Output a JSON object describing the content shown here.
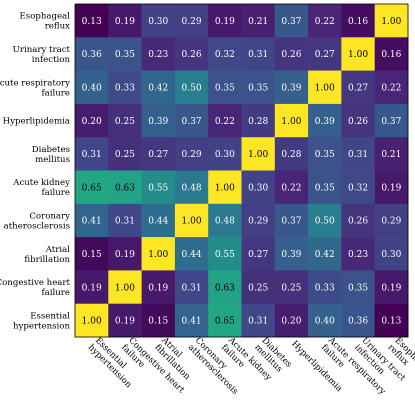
{
  "chart_data": {
    "type": "heatmap",
    "row_labels": [
      [
        "Esophageal",
        "reflux"
      ],
      [
        "Urinary tract",
        "infection"
      ],
      [
        "Acute respiratory",
        "failure"
      ],
      [
        "Hyperlipidemia"
      ],
      [
        "Diabetes",
        "mellitus"
      ],
      [
        "Acute kidney",
        "failure"
      ],
      [
        "Coronary",
        "atherosclerosis"
      ],
      [
        "Atrial",
        "fibrillation"
      ],
      [
        "Congestive heart",
        "failure"
      ],
      [
        "Essential",
        "hypertension"
      ]
    ],
    "col_labels": [
      [
        "Essential",
        "hypertension"
      ],
      [
        "Congestive heart",
        "failure"
      ],
      [
        "Atrial",
        "fibrillation"
      ],
      [
        "Coronary",
        "atherosclerosis"
      ],
      [
        "Acute kidney",
        "failure"
      ],
      [
        "Diabetes",
        "mellitus"
      ],
      [
        "Hyperlipidemia"
      ],
      [
        "Acute respiratory",
        "failure"
      ],
      [
        "Urinary tract",
        "infection"
      ],
      [
        "Esophageal",
        "reflux"
      ]
    ],
    "values": [
      [
        "0.13",
        "0.19",
        "0.30",
        "0.29",
        "0.19",
        "0.21",
        "0.37",
        "0.22",
        "0.16",
        "1.00"
      ],
      [
        "0.36",
        "0.35",
        "0.23",
        "0.26",
        "0.32",
        "0.31",
        "0.26",
        "0.27",
        "1.00",
        "0.16"
      ],
      [
        "0.40",
        "0.33",
        "0.42",
        "0.50",
        "0.35",
        "0.35",
        "0.39",
        "1.00",
        "0.27",
        "0.22"
      ],
      [
        "0.20",
        "0.25",
        "0.39",
        "0.37",
        "0.22",
        "0.28",
        "1.00",
        "0.39",
        "0.26",
        "0.37"
      ],
      [
        "0.31",
        "0.25",
        "0.27",
        "0.29",
        "0.30",
        "1.00",
        "0.28",
        "0.35",
        "0.31",
        "0.21"
      ],
      [
        "0.65",
        "0.63",
        "0.55",
        "0.48",
        "1.00",
        "0.30",
        "0.22",
        "0.35",
        "0.32",
        "0.19"
      ],
      [
        "0.41",
        "0.31",
        "0.44",
        "1.00",
        "0.48",
        "0.29",
        "0.37",
        "0.50",
        "0.26",
        "0.29"
      ],
      [
        "0.15",
        "0.19",
        "1.00",
        "0.44",
        "0.55",
        "0.27",
        "0.39",
        "0.42",
        "0.23",
        "0.30"
      ],
      [
        "0.19",
        "1.00",
        "0.19",
        "0.31",
        "0.63",
        "0.25",
        "0.25",
        "0.33",
        "0.35",
        "0.19"
      ],
      [
        "1.00",
        "0.19",
        "0.15",
        "0.41",
        "0.65",
        "0.31",
        "0.20",
        "0.40",
        "0.36",
        "0.13"
      ]
    ],
    "colormap": "viridis",
    "color_range": [
      0.13,
      1.0
    ],
    "legend": "none"
  }
}
